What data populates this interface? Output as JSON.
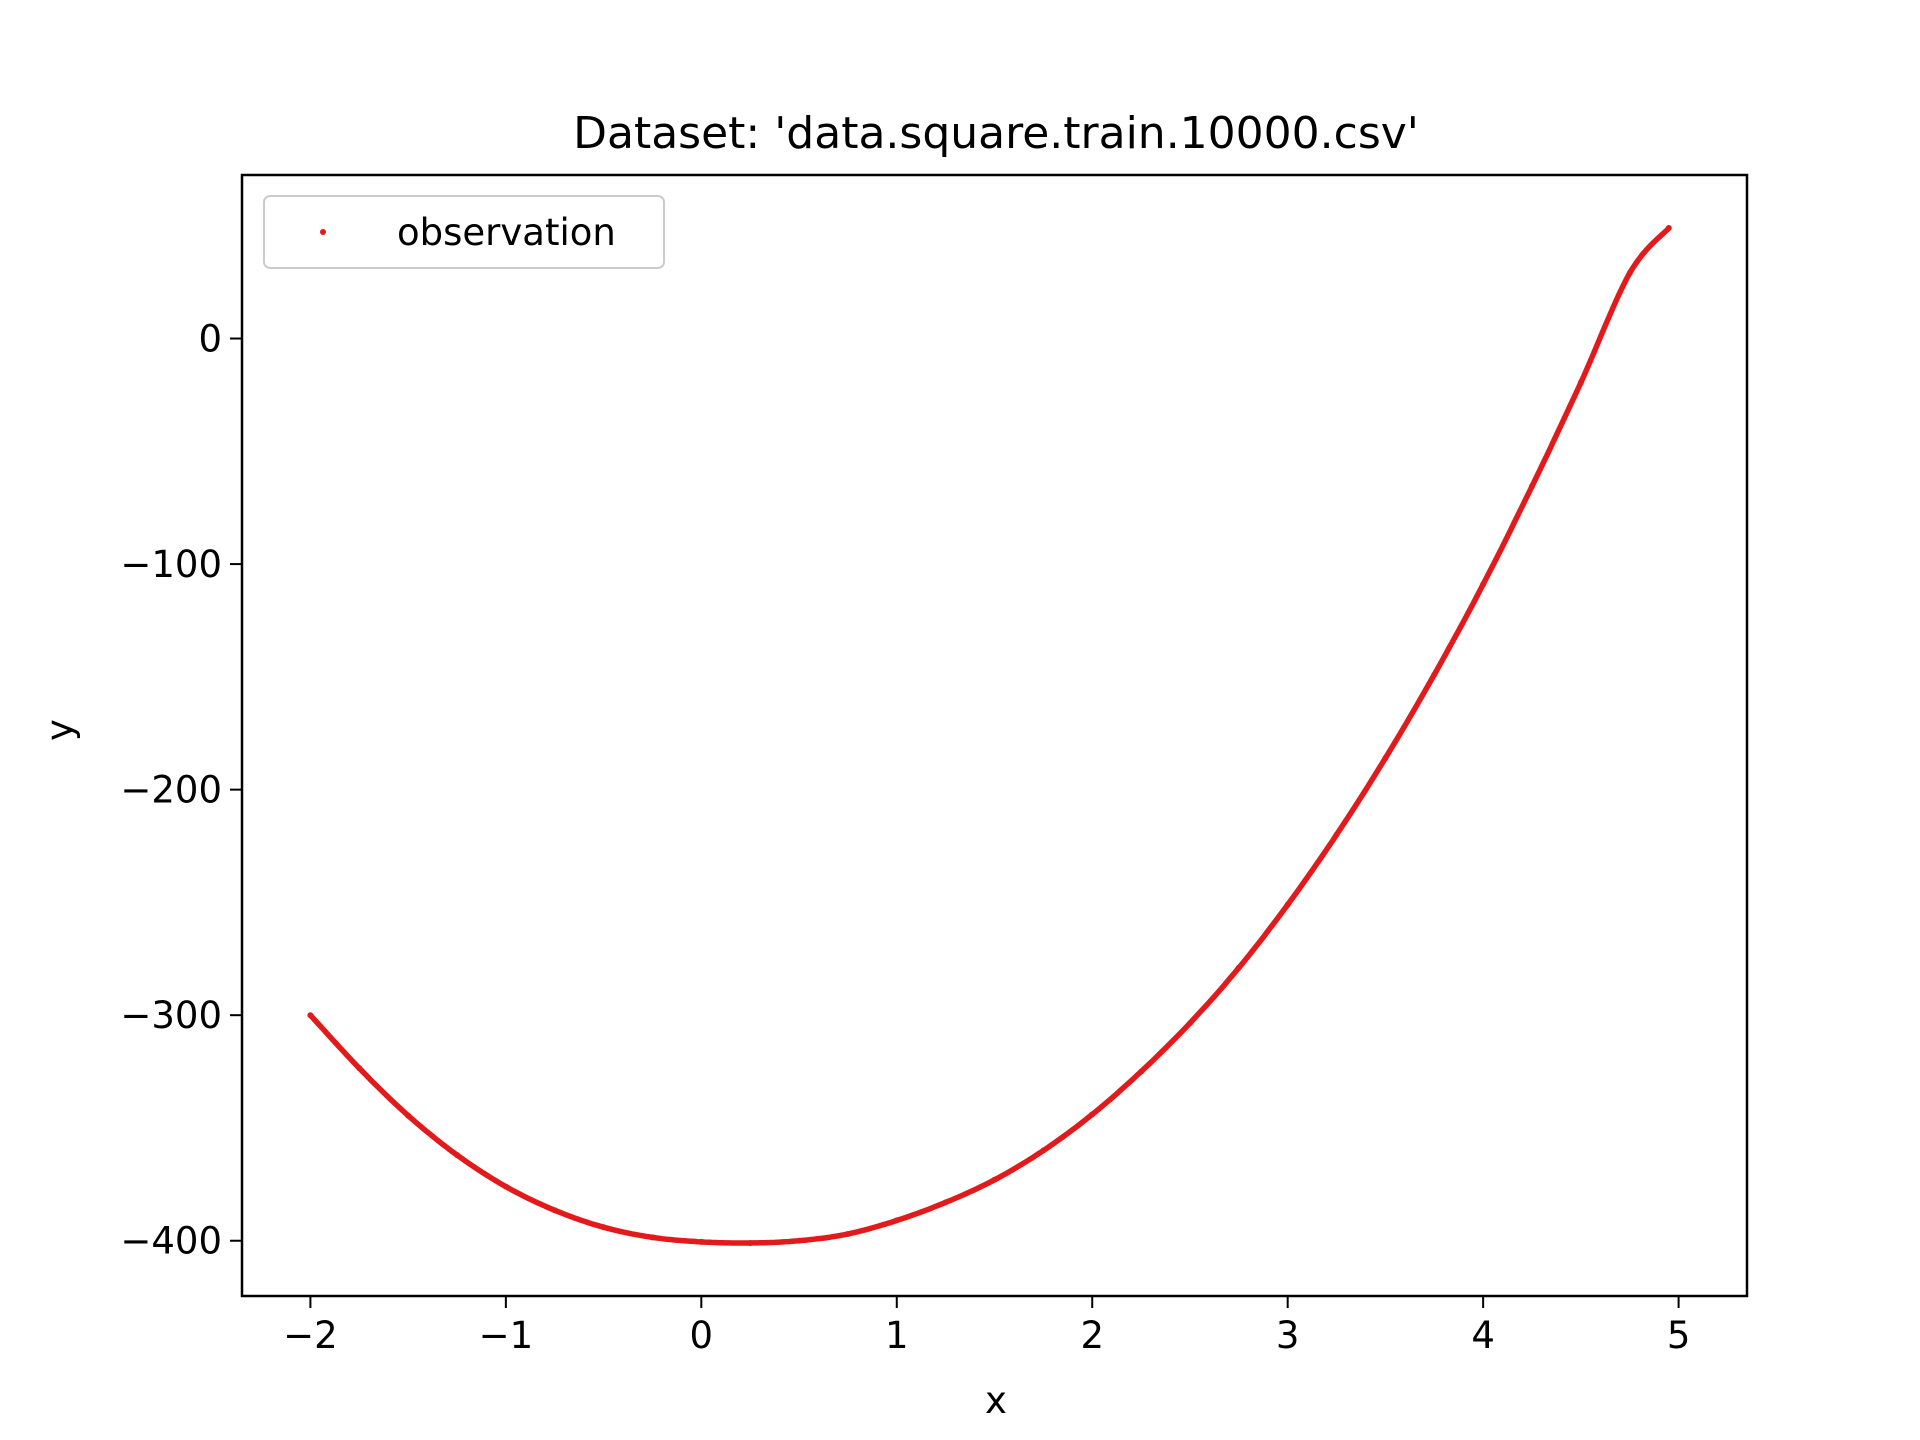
{
  "chart_data": {
    "type": "scatter",
    "title": "Dataset: 'data.square.train.10000.csv'",
    "xlabel": "x",
    "ylabel": "y",
    "xlim": [
      -2.35,
      5.35
    ],
    "ylim": [
      -424.5,
      72.5
    ],
    "x_ticks": [
      -2,
      -1,
      0,
      1,
      2,
      3,
      4,
      5
    ],
    "x_tick_labels": [
      "−2",
      "−1",
      "0",
      "1",
      "2",
      "3",
      "4",
      "5"
    ],
    "y_ticks": [
      0,
      -100,
      -200,
      -300,
      -400
    ],
    "y_tick_labels": [
      "0",
      "−100",
      "−200",
      "−300",
      "−400"
    ],
    "legend": {
      "position": "top-left",
      "entries": [
        "observation"
      ]
    },
    "grid": false,
    "series": [
      {
        "name": "observation",
        "color": "#e31a1c",
        "marker": "dot",
        "x_range": [
          -2,
          5
        ],
        "points": [
          [
            -2.0,
            -300.0
          ],
          [
            -1.75,
            -323.5
          ],
          [
            -1.5,
            -344.5
          ],
          [
            -1.25,
            -362.0
          ],
          [
            -1.0,
            -376.0
          ],
          [
            -0.75,
            -386.5
          ],
          [
            -0.5,
            -394.0
          ],
          [
            -0.25,
            -398.5
          ],
          [
            0.0,
            -400.5
          ],
          [
            0.25,
            -401.0
          ],
          [
            0.5,
            -400.0
          ],
          [
            0.75,
            -397.0
          ],
          [
            1.0,
            -391.0
          ],
          [
            1.25,
            -383.0
          ],
          [
            1.5,
            -373.0
          ],
          [
            1.75,
            -360.0
          ],
          [
            2.0,
            -344.0
          ],
          [
            2.25,
            -325.0
          ],
          [
            2.5,
            -303.5
          ],
          [
            2.75,
            -279.0
          ],
          [
            3.0,
            -251.0
          ],
          [
            3.25,
            -220.0
          ],
          [
            3.5,
            -186.0
          ],
          [
            3.75,
            -149.0
          ],
          [
            4.0,
            -109.0
          ],
          [
            4.25,
            -65.5
          ],
          [
            4.5,
            -19.5
          ],
          [
            4.75,
            29.0
          ],
          [
            4.95,
            49.0
          ]
        ]
      }
    ]
  }
}
